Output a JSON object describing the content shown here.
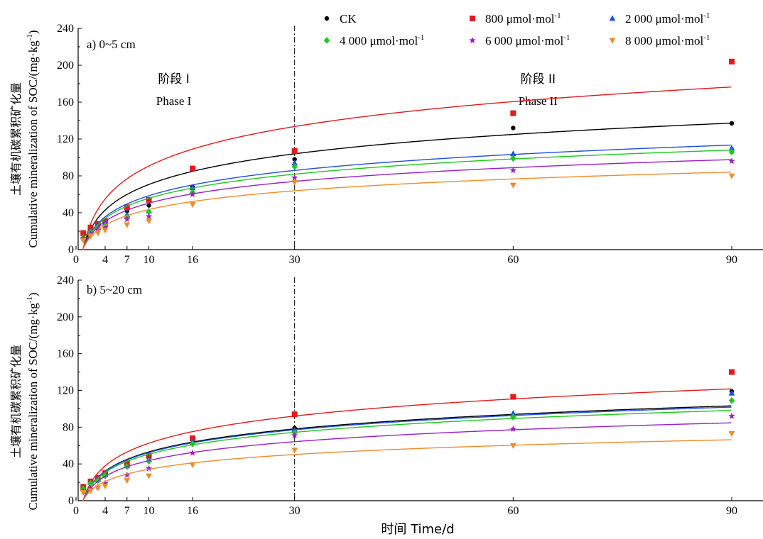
{
  "legend": [
    {
      "key": "ck",
      "label": "CK",
      "unit_sup": "",
      "color": "#000000",
      "marker": "circle"
    },
    {
      "key": "s800",
      "label": "800 μmol·mol",
      "unit_sup": "-1",
      "color": "#e41a1c",
      "marker": "square"
    },
    {
      "key": "s2000",
      "label": "2 000 μmol·mol",
      "unit_sup": "-1",
      "color": "#1f4ee0",
      "marker": "triangle-up"
    },
    {
      "key": "s4000",
      "label": "4 000 μmol·mol",
      "unit_sup": "-1",
      "color": "#1ec81e",
      "marker": "diamond"
    },
    {
      "key": "s6000",
      "label": "6 000 μmol·mol",
      "unit_sup": "-1",
      "color": "#9b1fc8",
      "marker": "star"
    },
    {
      "key": "s8000",
      "label": "8 000 μmol·mol",
      "unit_sup": "-1",
      "color": "#f08c2a",
      "marker": "triangle-down"
    }
  ],
  "ylabel_cn": "土壤有机碳累积矿化量",
  "ylabel_en": "Cumulative mineralization of SOC/(mg·kg",
  "ylabel_sup": "-1",
  "ylabel_close": ")",
  "xlabel": "时间 Time/d",
  "chart_data": [
    {
      "type": "scatter",
      "panel_label": "a) 0~5 cm",
      "phase_labels": [
        {
          "cn": "阶段 I",
          "en": "Phase I",
          "x": 10
        },
        {
          "cn": "阶段 II",
          "en": "Phase II",
          "x": 60
        }
      ],
      "divider_x": 30,
      "xlim": [
        0,
        90
      ],
      "ylim": [
        0,
        240
      ],
      "xticks": [
        0,
        4,
        7,
        10,
        16,
        30,
        60,
        90
      ],
      "yticks": [
        0,
        40,
        80,
        120,
        160,
        200,
        240
      ],
      "x": [
        1,
        2,
        3,
        4,
        7,
        10,
        16,
        30,
        60,
        90
      ],
      "series": [
        {
          "key": "ck",
          "values": [
            16,
            22,
            26,
            30,
            42,
            48,
            68,
            98,
            132,
            137
          ],
          "fit": {
            "a": 30.3,
            "b": 0.9
          }
        },
        {
          "key": "s800",
          "values": [
            18,
            24,
            28,
            31,
            46,
            54,
            88,
            107,
            148,
            204
          ],
          "fit": {
            "a": 39.0,
            "b": 0.9
          }
        },
        {
          "key": "s2000",
          "values": [
            14,
            21,
            25,
            29,
            38,
            42,
            67,
            94,
            104,
            110
          ],
          "fit": {
            "a": 25.0,
            "b": 0.9
          }
        },
        {
          "key": "s4000",
          "values": [
            13,
            19,
            23,
            26,
            35,
            41,
            62,
            90,
            99,
            106
          ],
          "fit": {
            "a": 23.8,
            "b": 0.9
          }
        },
        {
          "key": "s6000",
          "values": [
            12,
            17,
            21,
            24,
            33,
            36,
            60,
            78,
            86,
            96
          ],
          "fit": {
            "a": 21.5,
            "b": 0.9
          }
        },
        {
          "key": "s8000",
          "values": [
            10,
            15,
            18,
            21,
            27,
            31,
            49,
            73,
            70,
            80
          ],
          "fit": {
            "a": 18.5,
            "b": 0.9
          }
        }
      ]
    },
    {
      "type": "scatter",
      "panel_label": "b) 5~20 cm",
      "divider_x": 30,
      "xlim": [
        0,
        90
      ],
      "ylim": [
        0,
        240
      ],
      "xticks": [
        0,
        4,
        7,
        10,
        16,
        30,
        60,
        90
      ],
      "yticks": [
        0,
        40,
        80,
        120,
        160,
        200,
        240
      ],
      "x": [
        1,
        2,
        3,
        4,
        7,
        10,
        16,
        30,
        60,
        90
      ],
      "series": [
        {
          "key": "ck",
          "values": [
            16,
            21,
            24,
            29,
            40,
            47,
            66,
            79,
            93,
            119
          ],
          "fit": {
            "a": 22.8,
            "b": 0.6
          }
        },
        {
          "key": "s800",
          "values": [
            15,
            21,
            25,
            30,
            41,
            49,
            68,
            94,
            113,
            140
          ],
          "fit": {
            "a": 26.9,
            "b": 0.6
          }
        },
        {
          "key": "s2000",
          "values": [
            14,
            20,
            23,
            28,
            38,
            45,
            64,
            77,
            95,
            117
          ],
          "fit": {
            "a": 22.5,
            "b": 0.6
          }
        },
        {
          "key": "s4000",
          "values": [
            13,
            19,
            22,
            27,
            37,
            43,
            62,
            74,
            91,
            109
          ],
          "fit": {
            "a": 21.7,
            "b": 0.6
          }
        },
        {
          "key": "s6000",
          "values": [
            10,
            13,
            15,
            19,
            28,
            35,
            52,
            71,
            78,
            92
          ],
          "fit": {
            "a": 18.7,
            "b": 0.6
          }
        },
        {
          "key": "s8000",
          "values": [
            9,
            11,
            14,
            16,
            22,
            27,
            39,
            55,
            60,
            73
          ],
          "fit": {
            "a": 14.6,
            "b": 0.6
          }
        }
      ]
    }
  ]
}
